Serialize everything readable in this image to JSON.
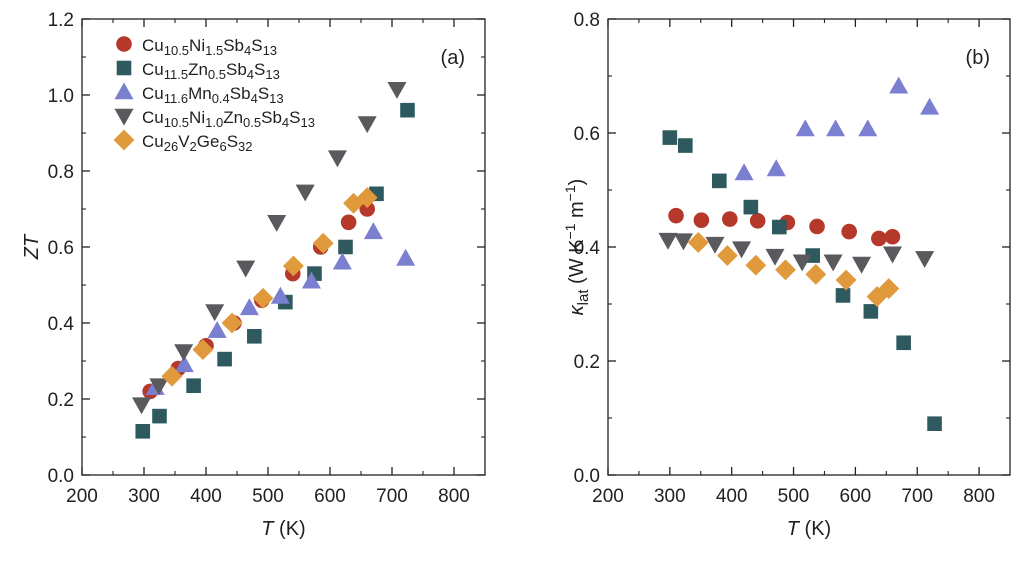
{
  "colors": {
    "Cu10.5Ni1.5Sb4S13": "#b5382a",
    "Cu11.5Zn0.5Sb4S13": "#2e5a5f",
    "Cu11.6Mn0.4Sb4S13": "#7b7fd0",
    "Cu10.5Ni1.0Zn0.5Sb4S13": "#5a5a5e",
    "Cu26V2Ge6S32": "#e09a3c"
  },
  "legend": [
    {
      "key": "Cu10.5Ni1.5Sb4S13",
      "marker": "circle",
      "parts": [
        [
          "Cu",
          ""
        ],
        [
          "10.5",
          "sub"
        ],
        [
          "Ni",
          ""
        ],
        [
          "1.5",
          "sub"
        ],
        [
          "Sb",
          ""
        ],
        [
          "4",
          "sub"
        ],
        [
          "S",
          ""
        ],
        [
          "13",
          "sub"
        ]
      ]
    },
    {
      "key": "Cu11.5Zn0.5Sb4S13",
      "marker": "square",
      "parts": [
        [
          "Cu",
          ""
        ],
        [
          "11.5",
          "sub"
        ],
        [
          "Zn",
          ""
        ],
        [
          "0.5",
          "sub"
        ],
        [
          "Sb",
          ""
        ],
        [
          "4",
          "sub"
        ],
        [
          "S",
          ""
        ],
        [
          "13",
          "sub"
        ]
      ]
    },
    {
      "key": "Cu11.6Mn0.4Sb4S13",
      "marker": "triangle-up",
      "parts": [
        [
          "Cu",
          ""
        ],
        [
          "11.6",
          "sub"
        ],
        [
          "Mn",
          ""
        ],
        [
          "0.4",
          "sub"
        ],
        [
          "Sb",
          ""
        ],
        [
          "4",
          "sub"
        ],
        [
          "S",
          ""
        ],
        [
          "13",
          "sub"
        ]
      ]
    },
    {
      "key": "Cu10.5Ni1.0Zn0.5Sb4S13",
      "marker": "triangle-down",
      "parts": [
        [
          "Cu",
          ""
        ],
        [
          "10.5",
          "sub"
        ],
        [
          "Ni",
          ""
        ],
        [
          "1.0",
          "sub"
        ],
        [
          "Zn",
          ""
        ],
        [
          "0.5",
          "sub"
        ],
        [
          "Sb",
          ""
        ],
        [
          "4",
          "sub"
        ],
        [
          "S",
          ""
        ],
        [
          "13",
          "sub"
        ]
      ]
    },
    {
      "key": "Cu26V2Ge6S32",
      "marker": "diamond",
      "parts": [
        [
          "Cu",
          ""
        ],
        [
          "26",
          "sub"
        ],
        [
          "V",
          ""
        ],
        [
          "2",
          "sub"
        ],
        [
          "Ge",
          ""
        ],
        [
          "6",
          "sub"
        ],
        [
          "S",
          ""
        ],
        [
          "32",
          "sub"
        ]
      ]
    }
  ],
  "chart_data": [
    {
      "panel": "(a)",
      "type": "scatter",
      "xlabel": {
        "italic": "T",
        "rest": " (K)"
      },
      "ylabel": "ZT",
      "xlim": [
        200,
        850
      ],
      "ylim": [
        0.0,
        1.2
      ],
      "xticks": [
        200,
        300,
        400,
        500,
        600,
        700,
        800
      ],
      "yticks": [
        0.0,
        0.2,
        0.4,
        0.6,
        0.8,
        1.0,
        1.2
      ],
      "ytick_decimals": 1,
      "legend_position": "top-left",
      "series": [
        {
          "name": "Cu10.5Ni1.5Sb4S13",
          "points": [
            [
              310,
              0.22
            ],
            [
              355,
              0.28
            ],
            [
              400,
              0.34
            ],
            [
              445,
              0.4
            ],
            [
              490,
              0.46
            ],
            [
              540,
              0.53
            ],
            [
              585,
              0.6
            ],
            [
              630,
              0.665
            ],
            [
              660,
              0.7
            ]
          ]
        },
        {
          "name": "Cu11.5Zn0.5Sb4S13",
          "points": [
            [
              298,
              0.115
            ],
            [
              325,
              0.155
            ],
            [
              380,
              0.235
            ],
            [
              430,
              0.305
            ],
            [
              478,
              0.365
            ],
            [
              528,
              0.455
            ],
            [
              575,
              0.53
            ],
            [
              625,
              0.6
            ],
            [
              675,
              0.74
            ],
            [
              725,
              0.96
            ]
          ]
        },
        {
          "name": "Cu11.6Mn0.4Sb4S13",
          "points": [
            [
              318,
              0.23
            ],
            [
              365,
              0.29
            ],
            [
              418,
              0.38
            ],
            [
              470,
              0.44
            ],
            [
              520,
              0.47
            ],
            [
              570,
              0.51
            ],
            [
              620,
              0.56
            ],
            [
              670,
              0.64
            ],
            [
              722,
              0.57
            ]
          ]
        },
        {
          "name": "Cu10.5Ni1.0Zn0.5Sb4S13",
          "points": [
            [
              296,
              0.185
            ],
            [
              324,
              0.235
            ],
            [
              364,
              0.325
            ],
            [
              414,
              0.43
            ],
            [
              464,
              0.545
            ],
            [
              514,
              0.665
            ],
            [
              560,
              0.745
            ],
            [
              612,
              0.835
            ],
            [
              660,
              0.925
            ],
            [
              708,
              1.015
            ]
          ]
        },
        {
          "name": "Cu26V2Ge6S32",
          "points": [
            [
              345,
              0.26
            ],
            [
              395,
              0.33
            ],
            [
              442,
              0.4
            ],
            [
              492,
              0.465
            ],
            [
              541,
              0.55
            ],
            [
              589,
              0.61
            ],
            [
              638,
              0.715
            ],
            [
              660,
              0.73
            ]
          ]
        }
      ]
    },
    {
      "panel": "(b)",
      "type": "scatter",
      "xlabel": {
        "italic": "T",
        "rest": " (K)"
      },
      "ylabel": "κlat (W K−1 m−1)",
      "xlim": [
        200,
        850
      ],
      "ylim": [
        0.0,
        0.8
      ],
      "xticks": [
        200,
        300,
        400,
        500,
        600,
        700,
        800
      ],
      "yticks": [
        0.0,
        0.2,
        0.4,
        0.6,
        0.8
      ],
      "ytick_decimals": 1,
      "series": [
        {
          "name": "Cu10.5Ni1.5Sb4S13",
          "points": [
            [
              310,
              0.455
            ],
            [
              351,
              0.447
            ],
            [
              397,
              0.449
            ],
            [
              442,
              0.446
            ],
            [
              490,
              0.443
            ],
            [
              538,
              0.436
            ],
            [
              590,
              0.427
            ],
            [
              638,
              0.415
            ],
            [
              660,
              0.418
            ]
          ]
        },
        {
          "name": "Cu11.5Zn0.5Sb4S13",
          "points": [
            [
              300,
              0.592
            ],
            [
              325,
              0.578
            ],
            [
              380,
              0.516
            ],
            [
              431,
              0.47
            ],
            [
              477,
              0.435
            ],
            [
              531,
              0.385
            ],
            [
              580,
              0.315
            ],
            [
              625,
              0.287
            ],
            [
              678,
              0.232
            ],
            [
              728,
              0.09
            ]
          ]
        },
        {
          "name": "Cu11.6Mn0.4Sb4S13",
          "points": [
            [
              420,
              0.53
            ],
            [
              472,
              0.537
            ],
            [
              519,
              0.607
            ],
            [
              568,
              0.607
            ],
            [
              620,
              0.607
            ],
            [
              670,
              0.682
            ],
            [
              720,
              0.645
            ]
          ]
        },
        {
          "name": "Cu10.5Ni1.0Zn0.5Sb4S13",
          "points": [
            [
              297,
              0.412
            ],
            [
              322,
              0.411
            ],
            [
              373,
              0.405
            ],
            [
              416,
              0.397
            ],
            [
              470,
              0.384
            ],
            [
              514,
              0.374
            ],
            [
              564,
              0.374
            ],
            [
              610,
              0.37
            ],
            [
              660,
              0.388
            ],
            [
              712,
              0.38
            ]
          ]
        },
        {
          "name": "Cu26V2Ge6S32",
          "points": [
            [
              346,
              0.408
            ],
            [
              393,
              0.385
            ],
            [
              439,
              0.368
            ],
            [
              487,
              0.36
            ],
            [
              536,
              0.352
            ],
            [
              585,
              0.342
            ],
            [
              635,
              0.313
            ],
            [
              654,
              0.327
            ]
          ]
        }
      ]
    }
  ]
}
